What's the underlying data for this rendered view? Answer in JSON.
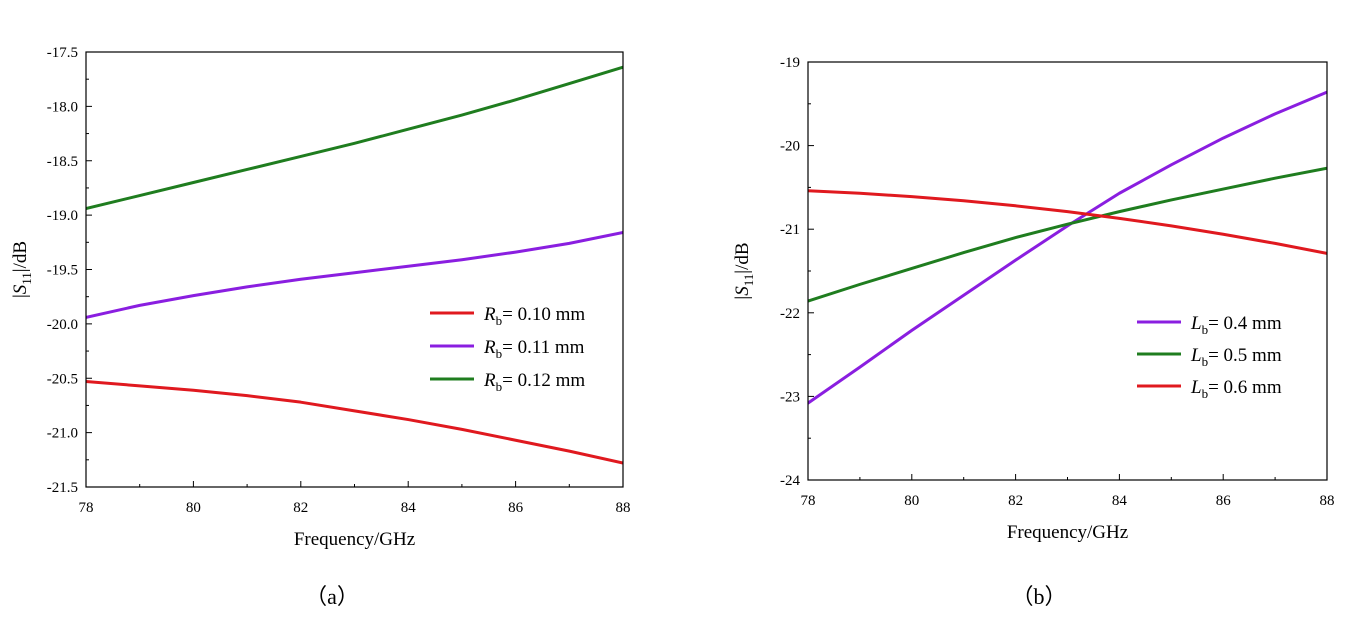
{
  "chart_data": [
    {
      "id": "a",
      "type": "line",
      "caption": "（a）",
      "xlabel": "Frequency/GHz",
      "ylabel": {
        "pre": "|",
        "sym": "S",
        "sub": "11",
        "post": "|/dB"
      },
      "xlim": [
        78,
        88
      ],
      "ylim": [
        -21.5,
        -17.5
      ],
      "xticks": [
        78,
        80,
        82,
        84,
        86,
        88
      ],
      "xtick_labels": [
        "78",
        "80",
        "82",
        "84",
        "86",
        "88"
      ],
      "yticks": [
        -21.5,
        -21.0,
        -20.5,
        -20.0,
        -19.5,
        -19.0,
        -18.5,
        -18.0,
        -17.5
      ],
      "ytick_labels": [
        "-21.5",
        "-21.0",
        "-20.5",
        "-20.0",
        "-19.5",
        "-19.0",
        "-18.5",
        "-18.0",
        "-17.5"
      ],
      "grid": false,
      "legend_position": "center-right",
      "x": [
        78,
        79,
        80,
        81,
        82,
        83,
        84,
        85,
        86,
        87,
        88
      ],
      "series": [
        {
          "name": {
            "sym": "R",
            "sub": "b",
            "rest": "= 0.10 mm"
          },
          "color": "#e0191f",
          "y": [
            -20.53,
            -20.57,
            -20.61,
            -20.66,
            -20.72,
            -20.8,
            -20.88,
            -20.97,
            -21.07,
            -21.17,
            -21.28
          ]
        },
        {
          "name": {
            "sym": "R",
            "sub": "b",
            "rest": "= 0.11 mm"
          },
          "color": "#8a1ee0",
          "y": [
            -19.94,
            -19.83,
            -19.74,
            -19.66,
            -19.59,
            -19.53,
            -19.47,
            -19.41,
            -19.34,
            -19.26,
            -19.16
          ]
        },
        {
          "name": {
            "sym": "R",
            "sub": "b",
            "rest": "= 0.12 mm"
          },
          "color": "#1f7d1f",
          "y": [
            -18.94,
            -18.82,
            -18.7,
            -18.58,
            -18.46,
            -18.34,
            -18.21,
            -18.08,
            -17.94,
            -17.79,
            -17.64
          ]
        }
      ]
    },
    {
      "id": "b",
      "type": "line",
      "caption": "（b）",
      "xlabel": "Frequency/GHz",
      "ylabel": {
        "pre": "|",
        "sym": "S",
        "sub": "11",
        "post": "|/dB"
      },
      "xlim": [
        78,
        88
      ],
      "ylim": [
        -24,
        -19
      ],
      "xticks": [
        78,
        80,
        82,
        84,
        86,
        88
      ],
      "xtick_labels": [
        "78",
        "80",
        "82",
        "84",
        "86",
        "88"
      ],
      "yticks": [
        -24,
        -23,
        -22,
        -21,
        -20,
        -19
      ],
      "ytick_labels": [
        "-24",
        "-23",
        "-22",
        "-21",
        "-20",
        "-19"
      ],
      "grid": false,
      "legend_position": "lower-right",
      "x": [
        78,
        79,
        80,
        81,
        82,
        83,
        84,
        85,
        86,
        87,
        88
      ],
      "series": [
        {
          "name": {
            "sym": "L",
            "sub": "b",
            "rest": "= 0.4 mm"
          },
          "color": "#8a1ee0",
          "y": [
            -23.08,
            -22.65,
            -22.21,
            -21.79,
            -21.37,
            -20.96,
            -20.57,
            -20.23,
            -19.91,
            -19.62,
            -19.36
          ]
        },
        {
          "name": {
            "sym": "L",
            "sub": "b",
            "rest": "= 0.5 mm"
          },
          "color": "#1f7d1f",
          "y": [
            -21.86,
            -21.66,
            -21.47,
            -21.28,
            -21.1,
            -20.94,
            -20.79,
            -20.65,
            -20.52,
            -20.39,
            -20.27
          ]
        },
        {
          "name": {
            "sym": "L",
            "sub": "b",
            "rest": "= 0.6 mm"
          },
          "color": "#e0191f",
          "y": [
            -20.54,
            -20.57,
            -20.61,
            -20.66,
            -20.72,
            -20.79,
            -20.87,
            -20.96,
            -21.06,
            -21.17,
            -21.29
          ]
        }
      ]
    }
  ]
}
